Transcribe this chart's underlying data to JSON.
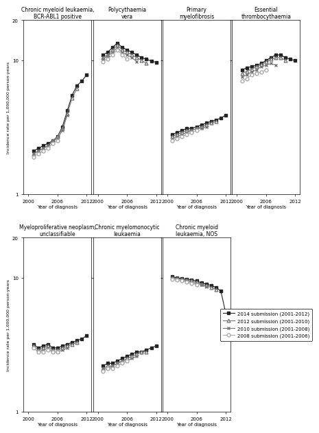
{
  "subplots": [
    {
      "title": "Chronic myeloid leukaemia,\nBCR-ABL1 positive",
      "series": {
        "s2014": {
          "x": [
            2001,
            2002,
            2003,
            2004,
            2005,
            2006,
            2007,
            2008,
            2009,
            2010,
            2011,
            2012
          ],
          "y": [
            2.1,
            2.2,
            2.3,
            2.4,
            2.5,
            2.7,
            3.2,
            4.2,
            5.5,
            6.5,
            7.0,
            7.8
          ]
        },
        "s2012": {
          "x": [
            2001,
            2002,
            2003,
            2004,
            2005,
            2006,
            2007,
            2008,
            2009,
            2010
          ],
          "y": [
            2.0,
            2.1,
            2.2,
            2.3,
            2.5,
            2.7,
            3.1,
            4.0,
            5.2,
            6.2
          ]
        },
        "s2010": {
          "x": [
            2001,
            2002,
            2003,
            2004,
            2005,
            2006,
            2007,
            2008
          ],
          "y": [
            2.0,
            2.1,
            2.2,
            2.3,
            2.5,
            2.6,
            3.0,
            3.9
          ]
        },
        "s2008": {
          "x": [
            2001,
            2002,
            2003,
            2004,
            2005,
            2006
          ],
          "y": [
            1.9,
            2.0,
            2.1,
            2.2,
            2.4,
            2.5
          ]
        }
      }
    },
    {
      "title": "Polycythaemia\nvera",
      "series": {
        "s2014": {
          "x": [
            2001,
            2002,
            2003,
            2004,
            2005,
            2006,
            2007,
            2008,
            2009,
            2010,
            2011,
            2012
          ],
          "y": [
            11.0,
            11.5,
            12.5,
            13.5,
            12.5,
            12.0,
            11.5,
            11.0,
            10.5,
            10.2,
            9.9,
            9.7
          ]
        },
        "s2012": {
          "x": [
            2001,
            2002,
            2003,
            2004,
            2005,
            2006,
            2007,
            2008,
            2009,
            2010
          ],
          "y": [
            10.5,
            11.0,
            12.0,
            13.0,
            12.0,
            11.5,
            11.0,
            10.5,
            10.0,
            9.5
          ]
        },
        "s2010": {
          "x": [
            2001,
            2002,
            2003,
            2004,
            2005,
            2006,
            2007,
            2008
          ],
          "y": [
            10.2,
            10.8,
            11.5,
            12.5,
            11.5,
            11.0,
            10.5,
            9.8
          ]
        },
        "s2008": {
          "x": [
            2001,
            2002,
            2003,
            2004,
            2005,
            2006
          ],
          "y": [
            9.8,
            10.2,
            11.0,
            12.0,
            11.0,
            10.2
          ]
        }
      }
    },
    {
      "title": "Primary\nmyelofibrosis",
      "series": {
        "s2014": {
          "x": [
            2001,
            2002,
            2003,
            2004,
            2005,
            2006,
            2007,
            2008,
            2009,
            2010,
            2011,
            2012
          ],
          "y": [
            2.8,
            2.9,
            3.0,
            3.1,
            3.1,
            3.2,
            3.3,
            3.4,
            3.5,
            3.6,
            3.7,
            3.9
          ]
        },
        "s2012": {
          "x": [
            2001,
            2002,
            2003,
            2004,
            2005,
            2006,
            2007,
            2008,
            2009,
            2010
          ],
          "y": [
            2.7,
            2.8,
            2.9,
            3.0,
            3.0,
            3.1,
            3.2,
            3.3,
            3.4,
            3.5
          ]
        },
        "s2010": {
          "x": [
            2001,
            2002,
            2003,
            2004,
            2005,
            2006,
            2007,
            2008
          ],
          "y": [
            2.6,
            2.7,
            2.8,
            2.9,
            3.0,
            3.1,
            3.1,
            3.2
          ]
        },
        "s2008": {
          "x": [
            2001,
            2002,
            2003,
            2004,
            2005,
            2006
          ],
          "y": [
            2.5,
            2.6,
            2.7,
            2.8,
            2.9,
            3.0
          ]
        }
      }
    },
    {
      "title": "Essential\nthrombocythaemia",
      "series": {
        "s2014": {
          "x": [
            2001,
            2002,
            2003,
            2004,
            2005,
            2006,
            2007,
            2008,
            2009,
            2010,
            2011,
            2012
          ],
          "y": [
            8.5,
            8.8,
            9.0,
            9.2,
            9.5,
            10.0,
            10.5,
            11.0,
            11.0,
            10.5,
            10.2,
            10.0
          ]
        },
        "s2012": {
          "x": [
            2001,
            2002,
            2003,
            2004,
            2005,
            2006,
            2007,
            2008,
            2009,
            2010
          ],
          "y": [
            8.0,
            8.3,
            8.6,
            9.0,
            9.3,
            9.8,
            10.2,
            10.5,
            10.5,
            10.0
          ]
        },
        "s2010": {
          "x": [
            2001,
            2002,
            2003,
            2004,
            2005,
            2006,
            2007,
            2008
          ],
          "y": [
            7.5,
            7.8,
            8.2,
            8.5,
            9.0,
            9.2,
            9.5,
            9.2
          ]
        },
        "s2008": {
          "x": [
            2001,
            2002,
            2003,
            2004,
            2005,
            2006
          ],
          "y": [
            7.0,
            7.3,
            7.8,
            8.0,
            8.2,
            8.5
          ]
        }
      }
    },
    {
      "title": "Myeloproliferative neoplasm,\nunclassifiable",
      "series": {
        "s2014": {
          "x": [
            2001,
            2002,
            2003,
            2004,
            2005,
            2006,
            2007,
            2008,
            2009,
            2010,
            2011,
            2012
          ],
          "y": [
            3.2,
            3.0,
            3.1,
            3.2,
            3.0,
            3.0,
            3.1,
            3.2,
            3.3,
            3.4,
            3.5,
            3.7
          ]
        },
        "s2012": {
          "x": [
            2001,
            2002,
            2003,
            2004,
            2005,
            2006,
            2007,
            2008,
            2009,
            2010
          ],
          "y": [
            3.1,
            2.9,
            3.0,
            3.1,
            2.9,
            2.9,
            3.0,
            3.1,
            3.2,
            3.3
          ]
        },
        "s2010": {
          "x": [
            2001,
            2002,
            2003,
            2004,
            2005,
            2006,
            2007,
            2008
          ],
          "y": [
            3.0,
            2.8,
            2.9,
            3.0,
            2.8,
            2.8,
            2.9,
            3.0
          ]
        },
        "s2008": {
          "x": [
            2001,
            2002,
            2003,
            2004,
            2005,
            2006
          ],
          "y": [
            3.0,
            2.8,
            2.8,
            2.9,
            2.8,
            2.8
          ]
        }
      }
    },
    {
      "title": "Chronic myelomonocytic\nleukaemia",
      "series": {
        "s2014": {
          "x": [
            2001,
            2002,
            2003,
            2004,
            2005,
            2006,
            2007,
            2008,
            2009,
            2010,
            2011,
            2012
          ],
          "y": [
            2.2,
            2.3,
            2.3,
            2.4,
            2.5,
            2.6,
            2.7,
            2.8,
            2.8,
            2.9,
            3.0,
            3.1
          ]
        },
        "s2012": {
          "x": [
            2001,
            2002,
            2003,
            2004,
            2005,
            2006,
            2007,
            2008,
            2009,
            2010
          ],
          "y": [
            2.1,
            2.2,
            2.2,
            2.3,
            2.4,
            2.5,
            2.6,
            2.7,
            2.8,
            2.8
          ]
        },
        "s2010": {
          "x": [
            2001,
            2002,
            2003,
            2004,
            2005,
            2006,
            2007,
            2008
          ],
          "y": [
            2.1,
            2.1,
            2.2,
            2.3,
            2.4,
            2.4,
            2.5,
            2.6
          ]
        },
        "s2008": {
          "x": [
            2001,
            2002,
            2003,
            2004,
            2005,
            2006
          ],
          "y": [
            2.0,
            2.1,
            2.1,
            2.2,
            2.3,
            2.4
          ]
        }
      }
    },
    {
      "title": "Chronic myeloid\nleukaemia, NOS",
      "series": {
        "s2014": {
          "x": [
            2001,
            2002,
            2003,
            2004,
            2005,
            2006,
            2007,
            2008,
            2009,
            2010,
            2011,
            2012
          ],
          "y": [
            10.2,
            10.0,
            9.9,
            9.8,
            9.7,
            9.5,
            9.2,
            9.0,
            8.8,
            8.5,
            8.0,
            5.5
          ]
        },
        "s2012": {
          "x": [
            2001,
            2002,
            2003,
            2004,
            2005,
            2006,
            2007,
            2008,
            2009,
            2010
          ],
          "y": [
            10.0,
            9.9,
            9.8,
            9.7,
            9.5,
            9.3,
            9.0,
            8.8,
            8.5,
            8.2
          ]
        },
        "s2010": {
          "x": [
            2001,
            2002,
            2003,
            2004,
            2005,
            2006,
            2007,
            2008
          ],
          "y": [
            10.0,
            9.9,
            9.7,
            9.5,
            9.3,
            9.1,
            8.9,
            8.6
          ]
        },
        "s2008": {
          "x": [
            2001,
            2002,
            2003,
            2004,
            2005,
            2006
          ],
          "y": [
            9.8,
            9.7,
            9.5,
            9.3,
            9.1,
            8.9
          ]
        }
      }
    }
  ],
  "series_styles": {
    "s2014": {
      "label": "2014 submission (2001-2012)",
      "marker": "s",
      "color": "#222222",
      "fillstyle": "full",
      "linewidth": 0.8,
      "markersize": 3.5
    },
    "s2012": {
      "label": "2012 submission (2001-2010)",
      "marker": "^",
      "color": "#777777",
      "fillstyle": "none",
      "linewidth": 0.8,
      "markersize": 3.5
    },
    "s2010": {
      "label": "2010 submission (2001-2008)",
      "marker": "x",
      "color": "#777777",
      "fillstyle": "none",
      "linewidth": 0.8,
      "markersize": 3.5
    },
    "s2008": {
      "label": "2008 submission (2001-2006)",
      "marker": "o",
      "color": "#aaaaaa",
      "fillstyle": "none",
      "linewidth": 0.8,
      "markersize": 3.5
    }
  },
  "xlabel": "Year of diagnosis",
  "ylabel": "Incidence rate per 1,000,000 person-years",
  "xticks": [
    2000,
    2006,
    2012
  ],
  "yticks": [
    1,
    10,
    20
  ],
  "ylim": [
    1,
    20
  ],
  "xlim": [
    1999,
    2013
  ]
}
